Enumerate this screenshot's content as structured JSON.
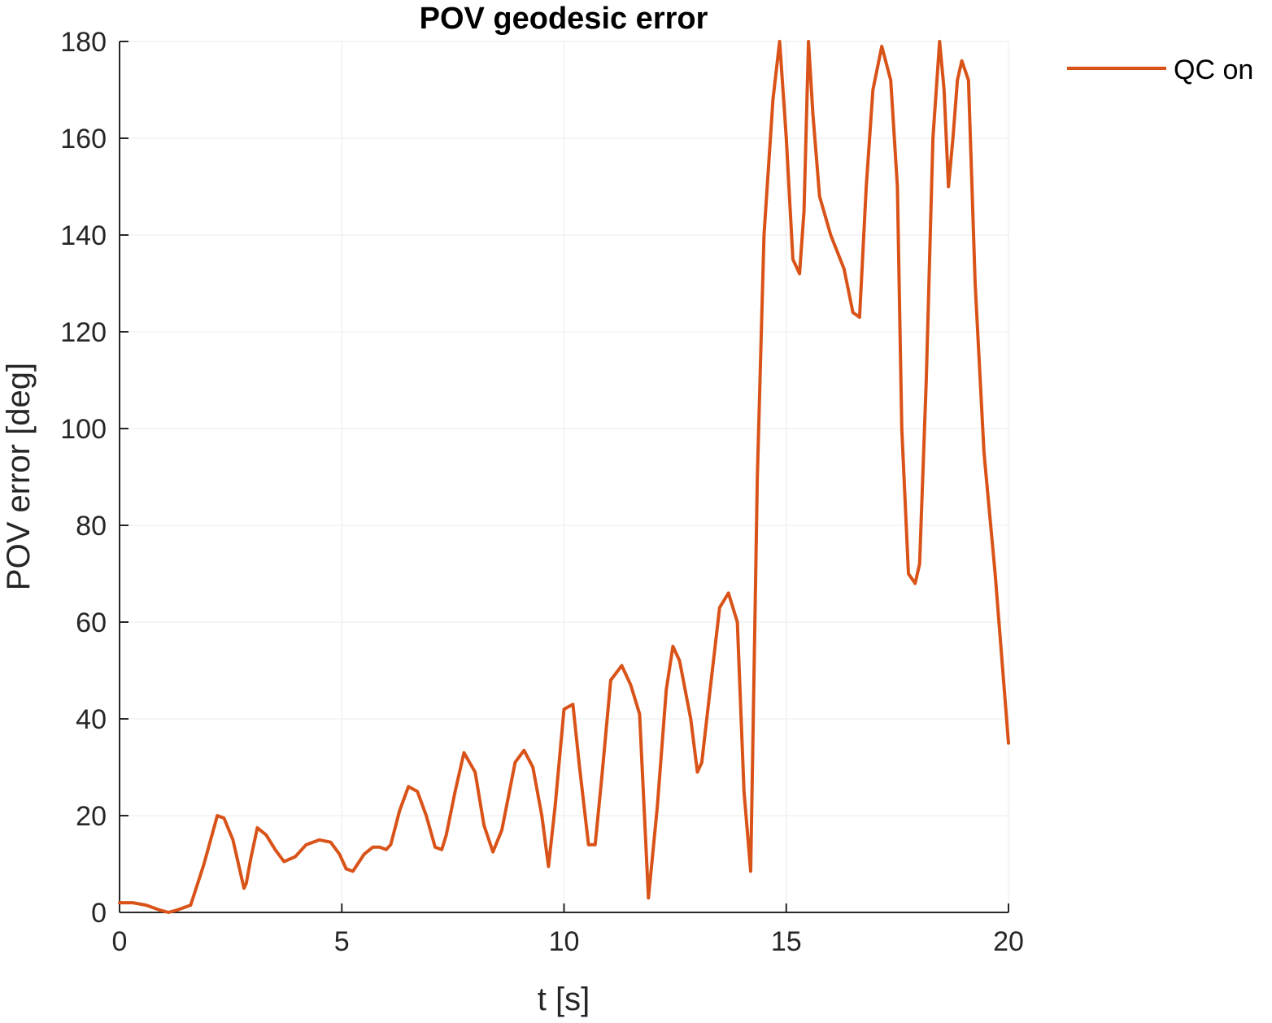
{
  "chart_data": {
    "type": "line",
    "title": "POV geodesic error",
    "xlabel": "t [s]",
    "ylabel": "POV error [deg]",
    "xlim": [
      0,
      20
    ],
    "ylim": [
      0,
      180
    ],
    "xticks": [
      0,
      5,
      10,
      15,
      20
    ],
    "yticks": [
      0,
      20,
      40,
      60,
      80,
      100,
      120,
      140,
      160,
      180
    ],
    "grid": true,
    "legend_position": "outside-top-right",
    "series": [
      {
        "name": "QC on",
        "color": "#D95319",
        "x": [
          0,
          0.3,
          0.6,
          0.9,
          1.1,
          1.3,
          1.6,
          1.9,
          2.2,
          2.35,
          2.55,
          2.8,
          2.85,
          2.95,
          3.1,
          3.3,
          3.5,
          3.7,
          3.95,
          4.2,
          4.5,
          4.75,
          4.95,
          5.1,
          5.25,
          5.5,
          5.7,
          5.85,
          6.0,
          6.1,
          6.3,
          6.5,
          6.7,
          6.9,
          7.1,
          7.25,
          7.35,
          7.55,
          7.75,
          8.0,
          8.2,
          8.4,
          8.6,
          8.75,
          8.9,
          9.1,
          9.3,
          9.5,
          9.65,
          9.8,
          10.0,
          10.2,
          10.35,
          10.55,
          10.7,
          10.85,
          11.05,
          11.3,
          11.5,
          11.7,
          11.9,
          12.1,
          12.3,
          12.45,
          12.6,
          12.85,
          13.0,
          13.1,
          13.3,
          13.5,
          13.7,
          13.9,
          14.05,
          14.2,
          14.35,
          14.5,
          14.7,
          14.85,
          15.0,
          15.15,
          15.3,
          15.4,
          15.5,
          15.6,
          15.75,
          16.0,
          16.3,
          16.5,
          16.65,
          16.8,
          16.95,
          17.15,
          17.35,
          17.5,
          17.6,
          17.75,
          17.9,
          18.0,
          18.15,
          18.3,
          18.45,
          18.55,
          18.65,
          18.75,
          18.85,
          18.95,
          19.1,
          19.25,
          19.45,
          19.7,
          20.0
        ],
        "y": [
          2,
          2,
          1.5,
          0.5,
          0,
          0.5,
          1.5,
          10,
          20,
          19.5,
          15,
          5,
          6,
          11,
          17.5,
          16,
          13,
          10.5,
          11.5,
          14,
          15,
          14.5,
          12,
          9,
          8.5,
          12,
          13.5,
          13.5,
          13,
          14,
          21,
          26,
          25,
          20,
          13.5,
          13,
          16,
          25,
          33,
          29,
          18,
          12.5,
          17,
          24,
          31,
          33.5,
          30,
          20,
          9.5,
          22,
          42,
          43,
          30,
          14,
          14,
          28,
          48,
          51,
          47,
          41,
          3,
          22,
          46,
          55,
          52,
          40,
          29,
          31,
          47,
          63,
          66,
          60,
          25,
          8.5,
          90,
          140,
          168,
          180,
          160,
          135,
          132,
          145,
          180,
          165,
          148,
          140,
          133,
          124,
          123,
          150,
          170,
          179,
          172,
          150,
          100,
          70,
          68,
          72,
          110,
          160,
          180,
          170,
          150,
          160,
          172,
          176,
          172,
          130,
          95,
          70,
          35
        ]
      }
    ]
  }
}
